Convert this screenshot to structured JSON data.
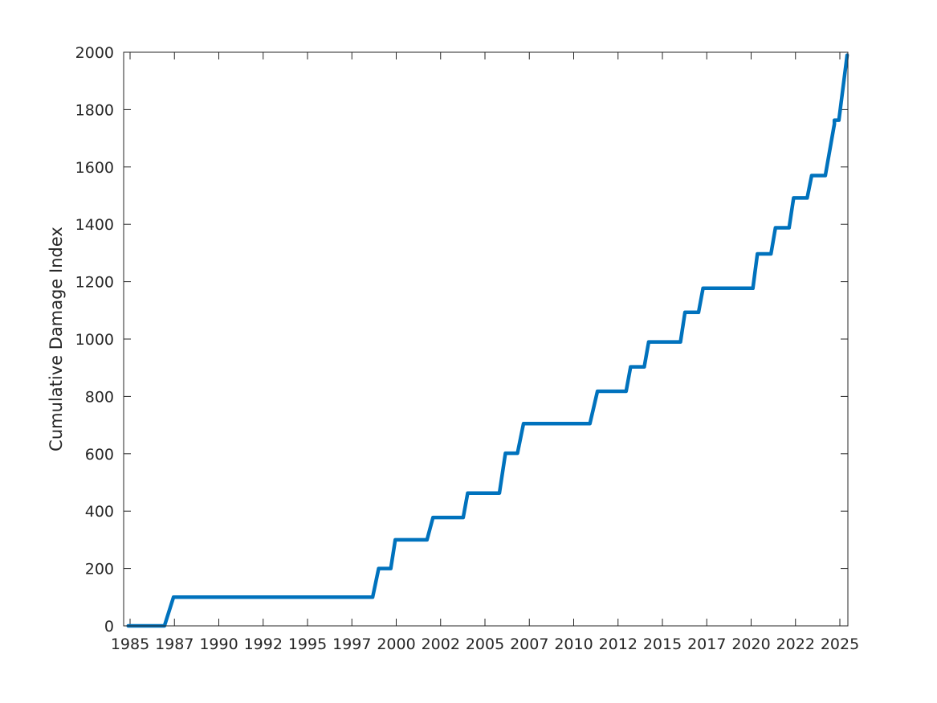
{
  "chart_data": {
    "type": "line",
    "title": "",
    "xlabel": "",
    "ylabel": "Cumulative Damage Index",
    "xlim": [
      "1985-03-01",
      "2025-03-01"
    ],
    "ylim": [
      0,
      2000
    ],
    "x_ticks": [
      "1985",
      "1987",
      "1990",
      "1992",
      "1995",
      "1997",
      "2000",
      "2002",
      "2005",
      "2007",
      "2010",
      "2012",
      "2015",
      "2017",
      "2020",
      "2022",
      "2025"
    ],
    "y_ticks": [
      "0",
      "200",
      "400",
      "600",
      "800",
      "1000",
      "1200",
      "1400",
      "1600",
      "1800",
      "2000"
    ],
    "grid": false,
    "legend": "none",
    "color": "#0072BD",
    "series": [
      {
        "x": [
          "1985-06-01",
          "1987-06-01",
          "1987-12-01",
          "1998-12-01",
          "1999-04-01",
          "1999-12-01",
          "2000-03-01",
          "2001-12-01",
          "2002-04-01",
          "2003-12-01",
          "2004-03-01",
          "2005-12-01",
          "2006-04-01",
          "2006-12-01",
          "2007-04-01",
          "2010-12-01",
          "2011-05-01",
          "2012-12-01",
          "2013-03-01",
          "2013-12-01",
          "2014-03-01",
          "2015-12-01",
          "2016-03-01",
          "2016-12-01",
          "2017-03-01",
          "2019-12-01",
          "2020-03-01",
          "2020-12-01",
          "2021-03-01",
          "2021-12-01",
          "2022-03-01",
          "2022-12-01",
          "2023-03-01",
          "2023-12-01",
          "2024-06-01",
          "2024-06-01",
          "2024-09-01",
          "2025-02-15"
        ],
        "y": [
          0,
          0,
          100,
          100,
          200,
          200,
          300,
          300,
          378,
          378,
          463,
          463,
          602,
          602,
          705,
          705,
          818,
          818,
          903,
          903,
          990,
          990,
          1093,
          1093,
          1177,
          1177,
          1297,
          1297,
          1388,
          1388,
          1492,
          1492,
          1570,
          1570,
          1750,
          1763,
          1763,
          1990
        ]
      }
    ]
  }
}
